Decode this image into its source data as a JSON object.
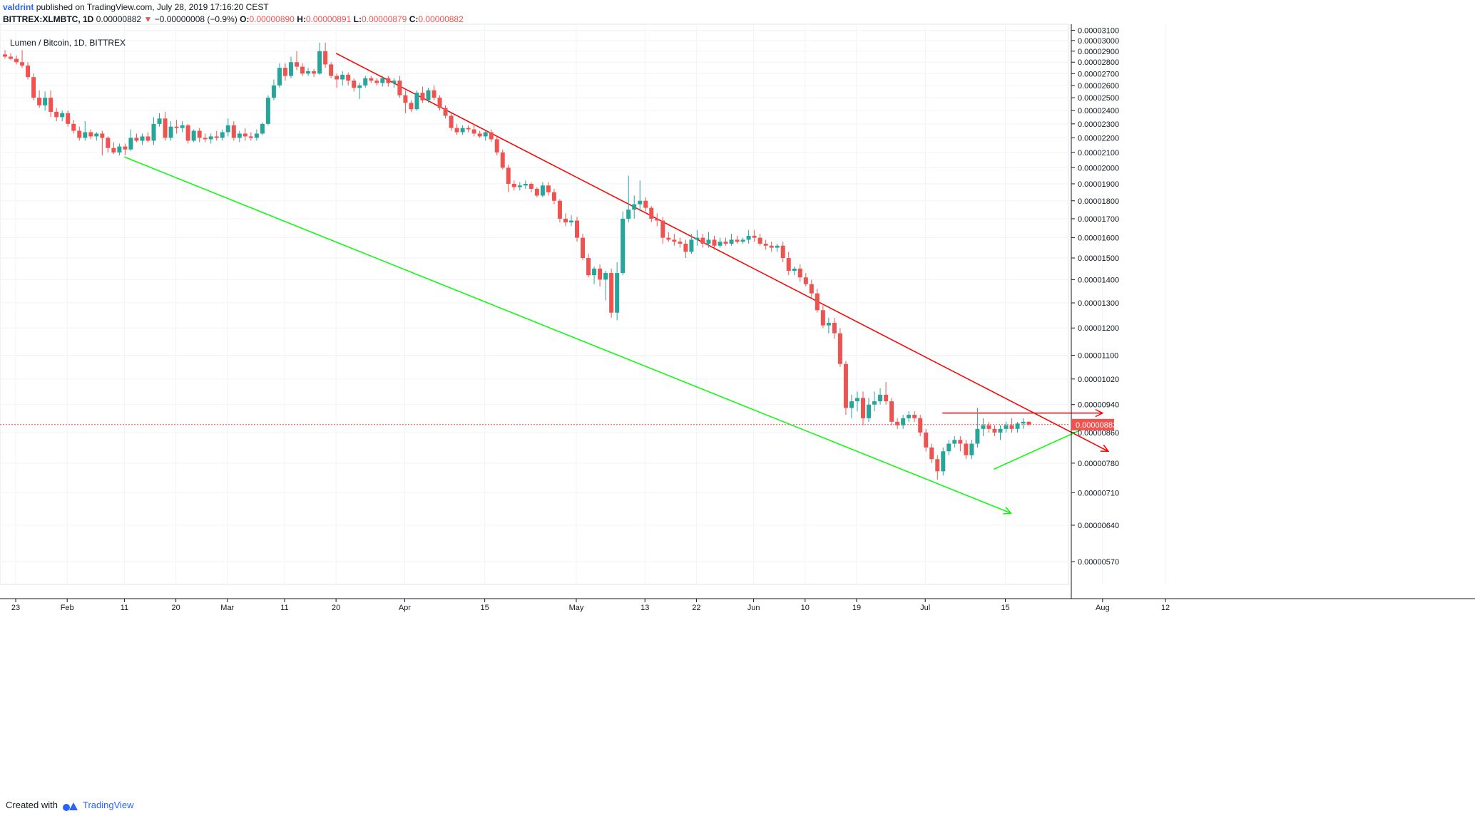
{
  "header": {
    "author": "valdrint",
    "published": "published on TradingView.com, July 28, 2019 17:16:20 CEST",
    "symbol": "BITTREX:XLMBTC, 1D",
    "last": "0.00000882",
    "change": "−0.00000008 (−0.9%)",
    "o_label": "O:",
    "o": "0.00000890",
    "h_label": "H:",
    "h": "0.00000891",
    "l_label": "L:",
    "l": "0.00000879",
    "c_label": "C:",
    "c": "0.00000882"
  },
  "chart_title": "Lumen / Bitcoin, 1D, BITTREX",
  "footer": {
    "created_with": "Created with",
    "brand": "TradingView"
  },
  "colors": {
    "up": "#26a69a",
    "down": "#ef5350",
    "resistance": "#ff0000",
    "support": "#00ff00",
    "grid": "#f0f3fa",
    "price_label": "#ef5350"
  },
  "chart_data": {
    "type": "candlestick",
    "title": "Lumen / Bitcoin, 1D, BITTREX",
    "y_scale": "log",
    "ylim": [
      5.3e-06,
      3.2e-06
    ],
    "y_ticks": [
      "0.00003100",
      "0.00003000",
      "0.00002900",
      "0.00002800",
      "0.00002700",
      "0.00002600",
      "0.00002500",
      "0.00002400",
      "0.00002300",
      "0.00002200",
      "0.00002100",
      "0.00002000",
      "0.00001900",
      "0.00001800",
      "0.00001700",
      "0.00001600",
      "0.00001500",
      "0.00001400",
      "0.00001300",
      "0.00001200",
      "0.00001100",
      "0.00001020",
      "0.00000940",
      "0.00000860",
      "0.00000780",
      "0.00000710",
      "0.00000640",
      "0.00000570"
    ],
    "x_ticks": [
      "23",
      "Feb",
      "11",
      "20",
      "Mar",
      "11",
      "20",
      "Apr",
      "15",
      "May",
      "13",
      "22",
      "Jun",
      "10",
      "19",
      "Jul",
      "15",
      "Aug",
      "12"
    ],
    "x_range": [
      "2019-01-22",
      "2019-08-12"
    ],
    "current_price": "0.00000882",
    "candles_ohlc": [
      [
        2.87e-05,
        2.91e-05,
        2.83e-05,
        2.85e-05
      ],
      [
        2.85e-05,
        2.88e-05,
        2.82e-05,
        2.83e-05
      ],
      [
        2.83e-05,
        2.86e-05,
        2.78e-05,
        2.8e-05
      ],
      [
        2.8e-05,
        2.91e-05,
        2.75e-05,
        2.77e-05
      ],
      [
        2.77e-05,
        2.8e-05,
        2.65e-05,
        2.67e-05
      ],
      [
        2.67e-05,
        2.7e-05,
        2.48e-05,
        2.5e-05
      ],
      [
        2.5e-05,
        2.56e-05,
        2.42e-05,
        2.44e-05
      ],
      [
        2.44e-05,
        2.55e-05,
        2.4e-05,
        2.5e-05
      ],
      [
        2.5e-05,
        2.56e-05,
        2.35e-05,
        2.39e-05
      ],
      [
        2.39e-05,
        2.42e-05,
        2.32e-05,
        2.35e-05
      ],
      [
        2.35e-05,
        2.4e-05,
        2.32e-05,
        2.38e-05
      ],
      [
        2.38e-05,
        2.4e-05,
        2.28e-05,
        2.3e-05
      ],
      [
        2.3e-05,
        2.33e-05,
        2.23e-05,
        2.25e-05
      ],
      [
        2.25e-05,
        2.28e-05,
        2.18e-05,
        2.2e-05
      ],
      [
        2.2e-05,
        2.32e-05,
        2.18e-05,
        2.24e-05
      ],
      [
        2.24e-05,
        2.26e-05,
        2.19e-05,
        2.21e-05
      ],
      [
        2.21e-05,
        2.24e-05,
        2.18e-05,
        2.23e-05
      ],
      [
        2.23e-05,
        2.25e-05,
        2.08e-05,
        2.2e-05
      ],
      [
        2.2e-05,
        2.21e-05,
        2.1e-05,
        2.13e-05
      ],
      [
        2.13e-05,
        2.17e-05,
        2.09e-05,
        2.1e-05
      ],
      [
        2.1e-05,
        2.16e-05,
        2.08e-05,
        2.14e-05
      ],
      [
        2.14e-05,
        2.16e-05,
        2.08e-05,
        2.12e-05
      ],
      [
        2.12e-05,
        2.26e-05,
        2.11e-05,
        2.2e-05
      ],
      [
        2.2e-05,
        2.23e-05,
        2.17e-05,
        2.18e-05
      ],
      [
        2.18e-05,
        2.23e-05,
        2.15e-05,
        2.21e-05
      ],
      [
        2.21e-05,
        2.24e-05,
        2.17e-05,
        2.18e-05
      ],
      [
        2.18e-05,
        2.35e-05,
        2.15e-05,
        2.3e-05
      ],
      [
        2.3e-05,
        2.38e-05,
        2.28e-05,
        2.34e-05
      ],
      [
        2.34e-05,
        2.39e-05,
        2.18e-05,
        2.2e-05
      ],
      [
        2.2e-05,
        2.32e-05,
        2.18e-05,
        2.28e-05
      ],
      [
        2.28e-05,
        2.33e-05,
        2.23e-05,
        2.27e-05
      ],
      [
        2.27e-05,
        2.32e-05,
        2.24e-05,
        2.29e-05
      ],
      [
        2.29e-05,
        2.3e-05,
        2.16e-05,
        2.18e-05
      ],
      [
        2.18e-05,
        2.26e-05,
        2.17e-05,
        2.25e-05
      ],
      [
        2.25e-05,
        2.27e-05,
        2.17e-05,
        2.2e-05
      ],
      [
        2.2e-05,
        2.23e-05,
        2.17e-05,
        2.19e-05
      ],
      [
        2.19e-05,
        2.23e-05,
        2.16e-05,
        2.21e-05
      ],
      [
        2.21e-05,
        2.25e-05,
        2.18e-05,
        2.2e-05
      ],
      [
        2.2e-05,
        2.26e-05,
        2.18e-05,
        2.24e-05
      ],
      [
        2.24e-05,
        2.34e-05,
        2.21e-05,
        2.29e-05
      ],
      [
        2.29e-05,
        2.32e-05,
        2.18e-05,
        2.2e-05
      ],
      [
        2.2e-05,
        2.25e-05,
        2.17e-05,
        2.23e-05
      ],
      [
        2.23e-05,
        2.27e-05,
        2.18e-05,
        2.21e-05
      ],
      [
        2.21e-05,
        2.24e-05,
        2.18e-05,
        2.2e-05
      ],
      [
        2.2e-05,
        2.26e-05,
        2.18e-05,
        2.23e-05
      ],
      [
        2.23e-05,
        2.31e-05,
        2.22e-05,
        2.3e-05
      ],
      [
        2.3e-05,
        2.52e-05,
        2.29e-05,
        2.5e-05
      ],
      [
        2.5e-05,
        2.65e-05,
        2.48e-05,
        2.6e-05
      ],
      [
        2.6e-05,
        2.79e-05,
        2.58e-05,
        2.75e-05
      ],
      [
        2.75e-05,
        2.79e-05,
        2.64e-05,
        2.68e-05
      ],
      [
        2.68e-05,
        2.85e-05,
        2.66e-05,
        2.8e-05
      ],
      [
        2.8e-05,
        2.9e-05,
        2.73e-05,
        2.76e-05
      ],
      [
        2.76e-05,
        2.79e-05,
        2.68e-05,
        2.7e-05
      ],
      [
        2.7e-05,
        2.75e-05,
        2.68e-05,
        2.72e-05
      ],
      [
        2.72e-05,
        2.74e-05,
        2.67e-05,
        2.7e-05
      ],
      [
        2.7e-05,
        2.98e-05,
        2.69e-05,
        2.9e-05
      ],
      [
        2.9e-05,
        2.98e-05,
        2.75e-05,
        2.78e-05
      ],
      [
        2.78e-05,
        2.8e-05,
        2.66e-05,
        2.68e-05
      ],
      [
        2.68e-05,
        2.7e-05,
        2.58e-05,
        2.65e-05
      ],
      [
        2.65e-05,
        2.72e-05,
        2.6e-05,
        2.69e-05
      ],
      [
        2.69e-05,
        2.71e-05,
        2.6e-05,
        2.64e-05
      ],
      [
        2.64e-05,
        2.66e-05,
        2.55e-05,
        2.58e-05
      ],
      [
        2.58e-05,
        2.62e-05,
        2.49e-05,
        2.6e-05
      ],
      [
        2.6e-05,
        2.68e-05,
        2.58e-05,
        2.66e-05
      ],
      [
        2.66e-05,
        2.68e-05,
        2.62e-05,
        2.64e-05
      ],
      [
        2.64e-05,
        2.66e-05,
        2.6e-05,
        2.62e-05
      ],
      [
        2.62e-05,
        2.68e-05,
        2.59e-05,
        2.66e-05
      ],
      [
        2.66e-05,
        2.68e-05,
        2.59e-05,
        2.62e-05
      ],
      [
        2.62e-05,
        2.66e-05,
        2.58e-05,
        2.64e-05
      ],
      [
        2.64e-05,
        2.68e-05,
        2.5e-05,
        2.52e-05
      ],
      [
        2.52e-05,
        2.56e-05,
        2.38e-05,
        2.46e-05
      ],
      [
        2.46e-05,
        2.48e-05,
        2.39e-05,
        2.41e-05
      ],
      [
        2.41e-05,
        2.56e-05,
        2.4e-05,
        2.54e-05
      ],
      [
        2.54e-05,
        2.59e-05,
        2.46e-05,
        2.48e-05
      ],
      [
        2.48e-05,
        2.58e-05,
        2.46e-05,
        2.56e-05
      ],
      [
        2.56e-05,
        2.6e-05,
        2.48e-05,
        2.5e-05
      ],
      [
        2.5e-05,
        2.52e-05,
        2.4e-05,
        2.42e-05
      ],
      [
        2.42e-05,
        2.44e-05,
        2.34e-05,
        2.36e-05
      ],
      [
        2.36e-05,
        2.38e-05,
        2.25e-05,
        2.27e-05
      ],
      [
        2.27e-05,
        2.3e-05,
        2.22e-05,
        2.24e-05
      ],
      [
        2.24e-05,
        2.29e-05,
        2.22e-05,
        2.27e-05
      ],
      [
        2.27e-05,
        2.29e-05,
        2.24e-05,
        2.26e-05
      ],
      [
        2.26e-05,
        2.3e-05,
        2.21e-05,
        2.23e-05
      ],
      [
        2.23e-05,
        2.25e-05,
        2.2e-05,
        2.21e-05
      ],
      [
        2.21e-05,
        2.25e-05,
        2.18e-05,
        2.24e-05
      ],
      [
        2.24e-05,
        2.26e-05,
        2.17e-05,
        2.19e-05
      ],
      [
        2.19e-05,
        2.21e-05,
        2.08e-05,
        2.1e-05
      ],
      [
        2.1e-05,
        2.12e-05,
        1.99e-05,
        2e-05
      ],
      [
        2e-05,
        2.02e-05,
        1.85e-05,
        1.9e-05
      ],
      [
        1.9e-05,
        1.92e-05,
        1.86e-05,
        1.88e-05
      ],
      [
        1.88e-05,
        1.91e-05,
        1.86e-05,
        1.89e-05
      ],
      [
        1.89e-05,
        1.92e-05,
        1.87e-05,
        1.9e-05
      ],
      [
        1.9e-05,
        1.91e-05,
        1.85e-05,
        1.87e-05
      ],
      [
        1.87e-05,
        1.88e-05,
        1.82e-05,
        1.83e-05
      ],
      [
        1.83e-05,
        1.91e-05,
        1.82e-05,
        1.89e-05
      ],
      [
        1.89e-05,
        1.91e-05,
        1.83e-05,
        1.85e-05
      ],
      [
        1.85e-05,
        1.87e-05,
        1.78e-05,
        1.8e-05
      ],
      [
        1.8e-05,
        1.81e-05,
        1.68e-05,
        1.7e-05
      ],
      [
        1.7e-05,
        1.73e-05,
        1.66e-05,
        1.68e-05
      ],
      [
        1.68e-05,
        1.72e-05,
        1.66e-05,
        1.69e-05
      ],
      [
        1.69e-05,
        1.71e-05,
        1.58e-05,
        1.6e-05
      ],
      [
        1.6e-05,
        1.62e-05,
        1.49e-05,
        1.5e-05
      ],
      [
        1.5e-05,
        1.52e-05,
        1.41e-05,
        1.42e-05
      ],
      [
        1.42e-05,
        1.46e-05,
        1.38e-05,
        1.45e-05
      ],
      [
        1.45e-05,
        1.47e-05,
        1.37e-05,
        1.4e-05
      ],
      [
        1.4e-05,
        1.44e-05,
        1.31e-05,
        1.43e-05
      ],
      [
        1.43e-05,
        1.45e-05,
        1.24e-05,
        1.26e-05
      ],
      [
        1.26e-05,
        1.48e-05,
        1.23e-05,
        1.43e-05
      ],
      [
        1.43e-05,
        1.74e-05,
        1.42e-05,
        1.7e-05
      ],
      [
        1.7e-05,
        1.95e-05,
        1.68e-05,
        1.75e-05
      ],
      [
        1.75e-05,
        1.83e-05,
        1.7e-05,
        1.78e-05
      ],
      [
        1.78e-05,
        1.92e-05,
        1.74e-05,
        1.8e-05
      ],
      [
        1.8e-05,
        1.82e-05,
        1.74e-05,
        1.76e-05
      ],
      [
        1.76e-05,
        1.77e-05,
        1.68e-05,
        1.7e-05
      ],
      [
        1.7e-05,
        1.73e-05,
        1.66e-05,
        1.69e-05
      ],
      [
        1.69e-05,
        1.71e-05,
        1.57e-05,
        1.6e-05
      ],
      [
        1.6e-05,
        1.63e-05,
        1.58e-05,
        1.59e-05
      ],
      [
        1.59e-05,
        1.62e-05,
        1.56e-05,
        1.58e-05
      ],
      [
        1.58e-05,
        1.6e-05,
        1.55e-05,
        1.57e-05
      ],
      [
        1.57e-05,
        1.59e-05,
        1.5e-05,
        1.53e-05
      ],
      [
        1.53e-05,
        1.62e-05,
        1.52e-05,
        1.59e-05
      ],
      [
        1.59e-05,
        1.64e-05,
        1.56e-05,
        1.6e-05
      ],
      [
        1.6e-05,
        1.62e-05,
        1.55e-05,
        1.57e-05
      ],
      [
        1.57e-05,
        1.63e-05,
        1.55e-05,
        1.59e-05
      ],
      [
        1.59e-05,
        1.61e-05,
        1.54e-05,
        1.56e-05
      ],
      [
        1.56e-05,
        1.6e-05,
        1.55e-05,
        1.58e-05
      ],
      [
        1.58e-05,
        1.6e-05,
        1.56e-05,
        1.57e-05
      ],
      [
        1.57e-05,
        1.62e-05,
        1.56e-05,
        1.59e-05
      ],
      [
        1.59e-05,
        1.61e-05,
        1.57e-05,
        1.58e-05
      ],
      [
        1.58e-05,
        1.6e-05,
        1.57e-05,
        1.59e-05
      ],
      [
        1.59e-05,
        1.64e-05,
        1.57e-05,
        1.61e-05
      ],
      [
        1.61e-05,
        1.64e-05,
        1.58e-05,
        1.6e-05
      ],
      [
        1.6e-05,
        1.62e-05,
        1.56e-05,
        1.57e-05
      ],
      [
        1.57e-05,
        1.59e-05,
        1.54e-05,
        1.56e-05
      ],
      [
        1.56e-05,
        1.58e-05,
        1.53e-05,
        1.55e-05
      ],
      [
        1.55e-05,
        1.57e-05,
        1.53e-05,
        1.56e-05
      ],
      [
        1.56e-05,
        1.58e-05,
        1.48e-05,
        1.5e-05
      ],
      [
        1.5e-05,
        1.53e-05,
        1.42e-05,
        1.44e-05
      ],
      [
        1.44e-05,
        1.46e-05,
        1.42e-05,
        1.45e-05
      ],
      [
        1.45e-05,
        1.47e-05,
        1.39e-05,
        1.41e-05
      ],
      [
        1.41e-05,
        1.43e-05,
        1.37e-05,
        1.38e-05
      ],
      [
        1.38e-05,
        1.4e-05,
        1.32e-05,
        1.34e-05
      ],
      [
        1.34e-05,
        1.36e-05,
        1.26e-05,
        1.27e-05
      ],
      [
        1.27e-05,
        1.29e-05,
        1.2e-05,
        1.21e-05
      ],
      [
        1.21e-05,
        1.24e-05,
        1.18e-05,
        1.22e-05
      ],
      [
        1.22e-05,
        1.24e-05,
        1.16e-05,
        1.18e-05
      ],
      [
        1.18e-05,
        1.2e-05,
        1.06e-05,
        1.07e-05
      ],
      [
        1.07e-05,
        1.08e-05,
        9.1e-06,
        9.3e-06
      ],
      [
        9.3e-06,
        9.7e-06,
        9e-06,
        9.5e-06
      ],
      [
        9.5e-06,
        9.8e-06,
        9.2e-06,
        9.6e-06
      ],
      [
        9.6e-06,
        9.8e-06,
        8.8e-06,
        9e-06
      ],
      [
        9e-06,
        9.6e-06,
        8.9e-06,
        9.4e-06
      ],
      [
        9.4e-06,
        9.8e-06,
        9.2e-06,
        9.5e-06
      ],
      [
        9.5e-06,
        9.9e-06,
        9.4e-06,
        9.7e-06
      ],
      [
        9.7e-06,
        1.01e-05,
        9.4e-06,
        9.5e-06
      ],
      [
        9.5e-06,
        9.6e-06,
        8.8e-06,
        8.9e-06
      ],
      [
        8.9e-06,
        9e-06,
        8.7e-06,
        8.8e-06
      ],
      [
        8.8e-06,
        9.1e-06,
        8.7e-06,
        9e-06
      ],
      [
        9e-06,
        9.2e-06,
        8.9e-06,
        9.1e-06
      ],
      [
        9.1e-06,
        9.2e-06,
        8.9e-06,
        9e-06
      ],
      [
        9e-06,
        9.1e-06,
        8.5e-06,
        8.6e-06
      ],
      [
        8.6e-06,
        8.7e-06,
        8.1e-06,
        8.2e-06
      ],
      [
        8.2e-06,
        8.3e-06,
        7.8e-06,
        7.9e-06
      ],
      [
        7.9e-06,
        8e-06,
        7.4e-06,
        7.6e-06
      ],
      [
        7.6e-06,
        8.2e-06,
        7.5e-06,
        8.1e-06
      ],
      [
        8.1e-06,
        8.4e-06,
        8e-06,
        8.3e-06
      ],
      [
        8.3e-06,
        8.5e-06,
        8.2e-06,
        8.4e-06
      ],
      [
        8.4e-06,
        8.5e-06,
        8.1e-06,
        8.3e-06
      ],
      [
        8.3e-06,
        8.4e-06,
        7.9e-06,
        8e-06
      ],
      [
        8e-06,
        8.4e-06,
        7.9e-06,
        8.3e-06
      ],
      [
        8.3e-06,
        9.3e-06,
        8.2e-06,
        8.7e-06
      ],
      [
        8.7e-06,
        9e-06,
        8.5e-06,
        8.8e-06
      ],
      [
        8.8e-06,
        8.9e-06,
        8.6e-06,
        8.7e-06
      ],
      [
        8.7e-06,
        8.8e-06,
        8.5e-06,
        8.6e-06
      ],
      [
        8.6e-06,
        8.8e-06,
        8.4e-06,
        8.7e-06
      ],
      [
        8.7e-06,
        8.9e-06,
        8.6e-06,
        8.8e-06
      ],
      [
        8.8e-06,
        9e-06,
        8.6e-06,
        8.7e-06
      ],
      [
        8.7e-06,
        8.9e-06,
        8.6e-06,
        8.85e-06
      ],
      [
        8.85e-06,
        9e-06,
        8.7e-06,
        8.9e-06
      ],
      [
        8.9e-06,
        8.91e-06,
        8.79e-06,
        8.82e-06
      ]
    ],
    "trend_lines": [
      {
        "name": "resistance",
        "color": "red",
        "from": [
          "2019-03-20",
          2.88e-05
        ],
        "to": [
          "2019-08-02",
          8.1e-06
        ],
        "arrow": true
      },
      {
        "name": "support",
        "color": "green",
        "from": [
          "2019-02-11",
          2.07e-05
        ],
        "to": [
          "2019-07-16",
          6.65e-06
        ],
        "arrow": true
      },
      {
        "name": "range-top",
        "color": "red",
        "from": [
          "2019-07-04",
          9.15e-06
        ],
        "to": [
          "2019-08-01",
          9.15e-06
        ],
        "arrow": true
      },
      {
        "name": "triangle-support",
        "color": "green",
        "from": [
          "2019-07-13",
          7.65e-06
        ],
        "to": [
          "2019-08-01",
          8.95e-06
        ],
        "arrow": true
      }
    ]
  }
}
